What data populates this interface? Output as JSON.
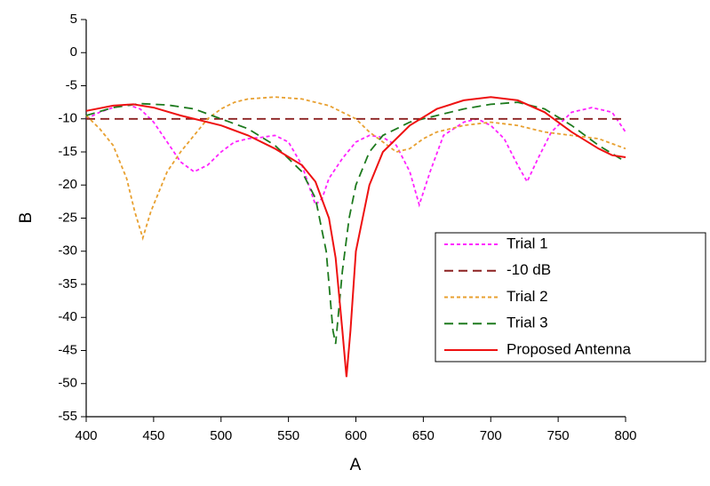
{
  "chart_data": {
    "type": "line",
    "x_label": "A",
    "y_label": "B",
    "xlim": [
      400,
      800
    ],
    "ylim": [
      -55,
      5
    ],
    "xticks": [
      400,
      450,
      500,
      550,
      600,
      650,
      700,
      750,
      800
    ],
    "yticks": [
      -55,
      -50,
      -45,
      -40,
      -35,
      -30,
      -25,
      -20,
      -15,
      -10,
      -5,
      0,
      5
    ],
    "grid": false,
    "legend": "lower right",
    "series": [
      {
        "name": "Trial 1",
        "color": "#ff22ff",
        "dash": "dotted",
        "x": [
          400,
          410,
          420,
          430,
          440,
          450,
          460,
          470,
          480,
          490,
          500,
          510,
          520,
          530,
          540,
          550,
          560,
          570,
          575,
          580,
          590,
          600,
          610,
          620,
          630,
          640,
          647,
          655,
          665,
          680,
          690,
          700,
          710,
          720,
          727,
          735,
          745,
          760,
          775,
          790,
          800
        ],
        "values": [
          -10,
          -9,
          -8.3,
          -7.8,
          -8.5,
          -10.5,
          -13.5,
          -16.5,
          -18,
          -17,
          -15,
          -13.5,
          -13,
          -12.8,
          -12.5,
          -13.5,
          -17,
          -23,
          -22,
          -19,
          -16,
          -13.5,
          -12.5,
          -12.8,
          -14,
          -18,
          -23,
          -18,
          -12.5,
          -10.5,
          -10,
          -11,
          -13,
          -17,
          -19.5,
          -16,
          -12,
          -9,
          -8.3,
          -9,
          -12
        ]
      },
      {
        "name": "-10 dB",
        "color": "#8b2020",
        "dash": "dashed",
        "x": [
          400,
          800
        ],
        "values": [
          -10,
          -10
        ]
      },
      {
        "name": "Trial 2",
        "color": "#e8a030",
        "dash": "dotted",
        "x": [
          400,
          410,
          420,
          430,
          436,
          442,
          448,
          460,
          470,
          480,
          490,
          500,
          510,
          520,
          540,
          560,
          580,
          600,
          610,
          620,
          630,
          640,
          650,
          660,
          680,
          700,
          720,
          740,
          760,
          780,
          800
        ],
        "values": [
          -9.5,
          -11.5,
          -14,
          -19,
          -24,
          -28,
          -24,
          -18,
          -15,
          -12.5,
          -10,
          -8.5,
          -7.5,
          -7,
          -6.7,
          -7,
          -8,
          -10,
          -12,
          -13.5,
          -15,
          -14.5,
          -13,
          -12,
          -11,
          -10.5,
          -11,
          -12,
          -12.5,
          -13,
          -14.5
        ]
      },
      {
        "name": "Trial 3",
        "color": "#1e7a1e",
        "dash": "dashed",
        "x": [
          400,
          420,
          440,
          460,
          480,
          500,
          520,
          540,
          560,
          570,
          578,
          583,
          585,
          590,
          595,
          600,
          610,
          620,
          640,
          660,
          680,
          700,
          720,
          740,
          760,
          780,
          800
        ],
        "values": [
          -9.5,
          -8.3,
          -7.7,
          -7.9,
          -8.5,
          -10,
          -11.5,
          -14,
          -18,
          -22,
          -30,
          -42,
          -44,
          -33,
          -25,
          -20,
          -15,
          -12.5,
          -10.5,
          -9.5,
          -8.5,
          -7.8,
          -7.5,
          -8.5,
          -11,
          -14,
          -16.5
        ]
      },
      {
        "name": "Proposed Antenna",
        "color": "#ee1111",
        "dash": "solid",
        "x": [
          400,
          420,
          435,
          450,
          470,
          500,
          520,
          540,
          560,
          570,
          580,
          585,
          590,
          593,
          596,
          600,
          610,
          620,
          640,
          660,
          680,
          700,
          720,
          740,
          760,
          780,
          790,
          800
        ],
        "values": [
          -8.8,
          -8,
          -7.8,
          -8.3,
          -9.5,
          -11,
          -12.5,
          -14.5,
          -17,
          -19.5,
          -25,
          -31,
          -42,
          -49,
          -42,
          -30,
          -20,
          -15,
          -11,
          -8.5,
          -7.2,
          -6.7,
          -7.2,
          -9,
          -12,
          -14.5,
          -15.5,
          -15.8
        ]
      }
    ]
  }
}
